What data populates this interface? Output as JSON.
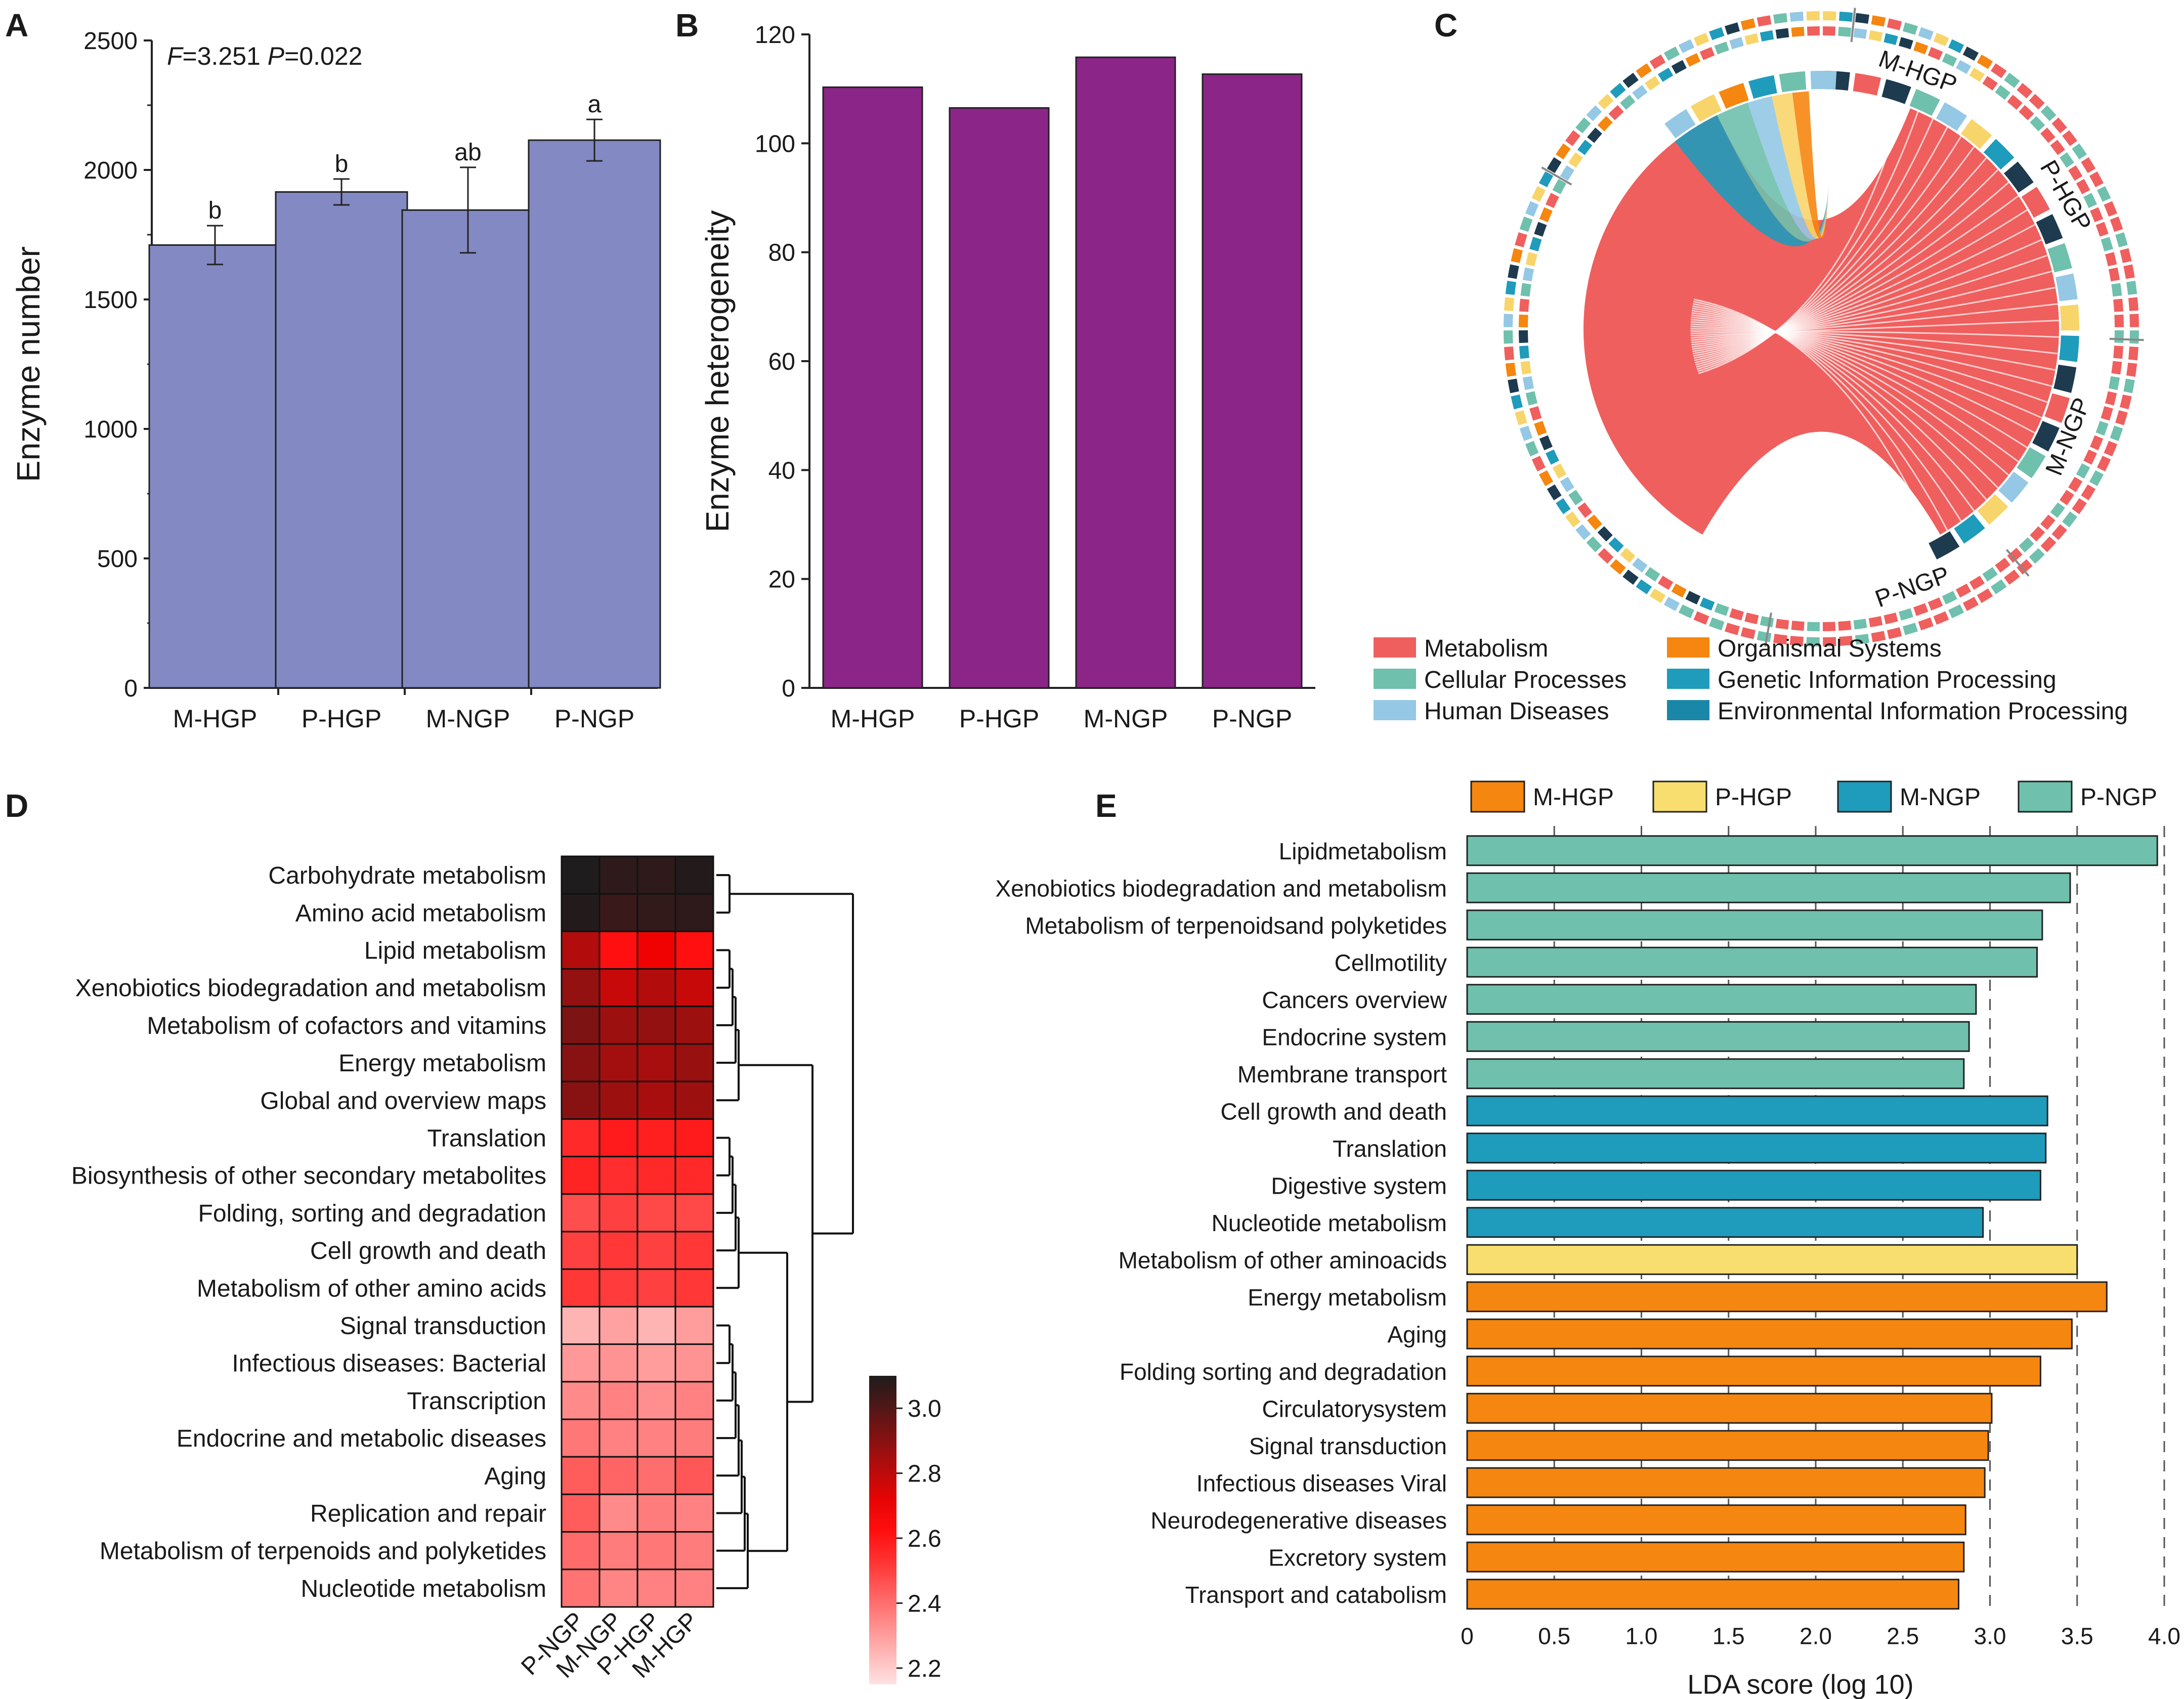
{
  "panel_labels": [
    "A",
    "B",
    "C",
    "D",
    "E"
  ],
  "chart_data": [
    {
      "panel": "A",
      "type": "bar",
      "annotation_parts": [
        "F",
        "=3.251 ",
        "P",
        "=0.022"
      ],
      "categories": [
        "M-HGP",
        "P-HGP",
        "M-NGP",
        "P-NGP"
      ],
      "values": [
        1710,
        1915,
        1845,
        2115
      ],
      "errors": [
        75,
        50,
        165,
        80
      ],
      "significance": [
        "b",
        "b",
        "ab",
        "a"
      ],
      "ylabel": "Enzyme number",
      "ylim": [
        0,
        2500
      ],
      "yticks": [
        0,
        500,
        1000,
        1500,
        2000,
        2500
      ],
      "color": "#8389c2"
    },
    {
      "panel": "B",
      "type": "bar",
      "categories": [
        "M-HGP",
        "P-HGP",
        "M-NGP",
        "P-NGP"
      ],
      "values": [
        110.3,
        106.5,
        115.8,
        112.7
      ],
      "ylabel": "Enzyme heterogeneity",
      "ylim": [
        0,
        120
      ],
      "yticks": [
        0,
        20,
        40,
        60,
        80,
        100,
        120
      ],
      "color": "#8b2587"
    },
    {
      "panel": "C",
      "type": "chord",
      "group_labels": [
        "M-HGP",
        "P-HGP",
        "M-NGP",
        "P-NGP"
      ],
      "legend": [
        {
          "name": "Metabolism",
          "color": "#ef5f5e"
        },
        {
          "name": "Organismal Systems",
          "color": "#f5860f"
        },
        {
          "name": "Cellular Processes",
          "color": "#6fc0ad"
        },
        {
          "name": "Genetic Information Processing",
          "color": "#1f9bbb"
        },
        {
          "name": "Human Diseases",
          "color": "#94c8e5"
        },
        {
          "name": "Environmental Information Processing",
          "color": "#1a87a8"
        }
      ],
      "other_colors": {
        "yellow": "#f8d56a",
        "dark": "#1d3a4e"
      }
    },
    {
      "panel": "D",
      "type": "heatmap",
      "rows": [
        "Carbohydrate metabolism",
        "Amino acid metabolism",
        "Lipid metabolism",
        "Xenobiotics biodegradation and metabolism",
        "Metabolism of cofactors and vitamins",
        "Energy metabolism",
        "Global and overview maps",
        "Translation",
        "Biosynthesis of other secondary metabolites",
        "Folding, sorting and degradation",
        "Cell growth and death",
        "Metabolism of other amino acids",
        "Signal transduction",
        "Infectious diseases: Bacterial",
        "Transcription",
        "Endocrine and metabolic diseases",
        "Aging",
        "Replication and repair",
        "Metabolism of terpenoids and polyketides",
        "Nucleotide metabolism"
      ],
      "columns": [
        "P-NGP",
        "M-NGP",
        "P-HGP",
        "M-HGP"
      ],
      "values": [
        [
          3.1,
          3.07,
          3.07,
          3.09
        ],
        [
          3.09,
          3.05,
          3.06,
          3.07
        ],
        [
          2.82,
          2.62,
          2.7,
          2.62
        ],
        [
          2.88,
          2.78,
          2.82,
          2.78
        ],
        [
          2.92,
          2.86,
          2.88,
          2.86
        ],
        [
          2.9,
          2.85,
          2.84,
          2.87
        ],
        [
          2.9,
          2.86,
          2.84,
          2.86
        ],
        [
          2.55,
          2.58,
          2.57,
          2.58
        ],
        [
          2.56,
          2.54,
          2.55,
          2.55
        ],
        [
          2.47,
          2.5,
          2.48,
          2.48
        ],
        [
          2.5,
          2.52,
          2.5,
          2.52
        ],
        [
          2.52,
          2.51,
          2.5,
          2.52
        ],
        [
          2.25,
          2.29,
          2.25,
          2.3
        ],
        [
          2.31,
          2.32,
          2.3,
          2.32
        ],
        [
          2.34,
          2.36,
          2.33,
          2.36
        ],
        [
          2.38,
          2.36,
          2.36,
          2.37
        ],
        [
          2.44,
          2.42,
          2.4,
          2.45
        ],
        [
          2.44,
          2.34,
          2.37,
          2.36
        ],
        [
          2.41,
          2.37,
          2.38,
          2.37
        ],
        [
          2.39,
          2.35,
          2.36,
          2.36
        ]
      ],
      "colorbar": {
        "min": 2.15,
        "max": 3.1,
        "ticks": [
          2.2,
          2.4,
          2.6,
          2.8,
          3.0
        ],
        "tick_labels": [
          "2.2",
          "2.4",
          "2.6",
          "2.8",
          "3.0"
        ]
      },
      "dendrogram_clusters": [
        [
          0,
          1
        ],
        [
          2,
          6
        ],
        [
          7,
          11
        ],
        [
          12,
          19
        ]
      ]
    },
    {
      "panel": "E",
      "type": "bar",
      "orientation": "horizontal",
      "legend": [
        {
          "name": "M-HGP",
          "color": "#f5860f"
        },
        {
          "name": "P-HGP",
          "color": "#f8de6e"
        },
        {
          "name": "M-NGP",
          "color": "#1f9bbb"
        },
        {
          "name": "P-NGP",
          "color": "#6fc0ad"
        }
      ],
      "categories": [
        "Lipidmetabolism",
        "Xenobiotics biodegradation and metabolism",
        "Metabolism of terpenoidsand polyketides",
        "Cellmotility",
        "Cancers overview",
        "Endocrine system",
        "Membrane transport",
        "Cell growth and death",
        "Translation",
        "Digestive system",
        "Nucleotide metabolism",
        "Metabolism of other aminoacids",
        "Energy metabolism",
        "Aging",
        "Folding sorting and degradation",
        "Circulatorysystem",
        "Signal transduction",
        "Infectious diseases Viral",
        "Neurodegenerative diseases",
        "Excretory system",
        "Transport and catabolism"
      ],
      "values": [
        3.96,
        3.46,
        3.3,
        3.27,
        2.92,
        2.88,
        2.85,
        3.33,
        3.32,
        3.29,
        2.96,
        3.5,
        3.67,
        3.47,
        3.29,
        3.01,
        2.99,
        2.97,
        2.86,
        2.85,
        2.82
      ],
      "groups": [
        "P-NGP",
        "P-NGP",
        "P-NGP",
        "P-NGP",
        "P-NGP",
        "P-NGP",
        "P-NGP",
        "M-NGP",
        "M-NGP",
        "M-NGP",
        "M-NGP",
        "P-HGP",
        "M-HGP",
        "M-HGP",
        "M-HGP",
        "M-HGP",
        "M-HGP",
        "M-HGP",
        "M-HGP",
        "M-HGP",
        "M-HGP"
      ],
      "xlabel": "LDA score (log 10)",
      "xlim": [
        0,
        4.0
      ],
      "xticks": [
        0,
        0.5,
        1.0,
        1.5,
        2.0,
        2.5,
        3.0,
        3.5,
        4.0
      ],
      "xtick_labels": [
        "0",
        "0.5",
        "1.0",
        "1.5",
        "2.0",
        "2.5",
        "3.0",
        "3.5",
        "4.0"
      ]
    }
  ]
}
